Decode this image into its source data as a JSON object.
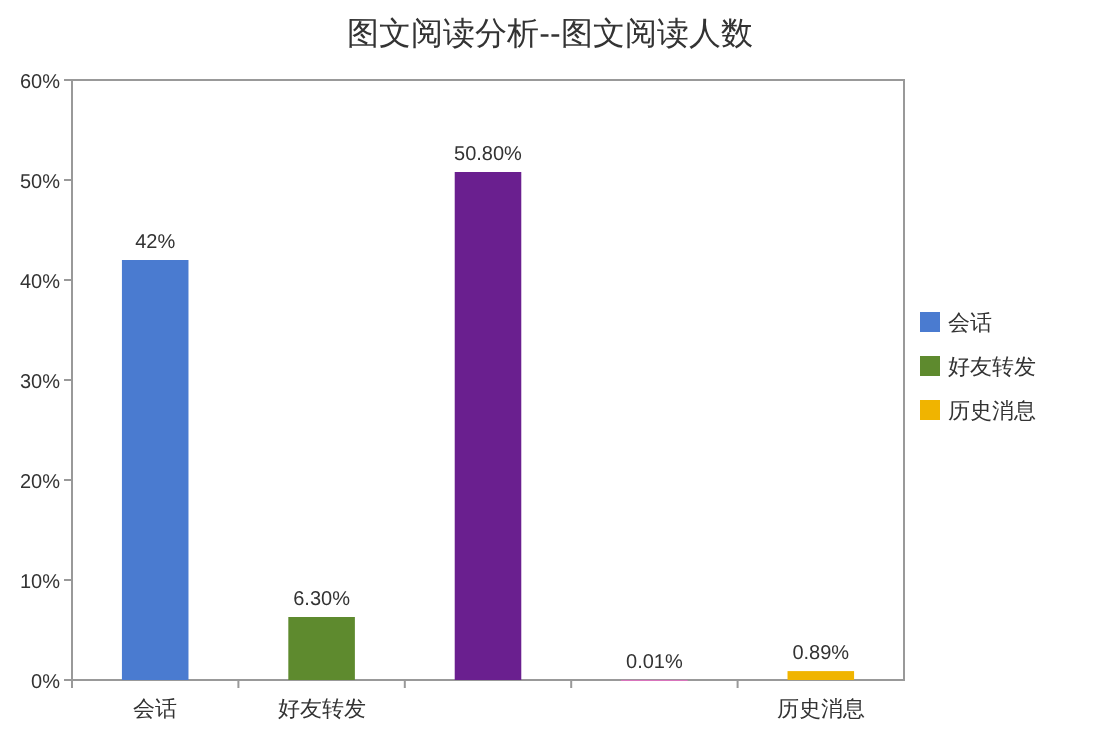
{
  "chart_data": {
    "type": "bar",
    "title": "图文阅读分析--图文阅读人数",
    "categories": [
      "会话",
      "好友转发",
      null,
      null,
      "历史消息"
    ],
    "series": [
      {
        "name": "会话",
        "color": "#4a7bd0",
        "values": [
          42,
          null,
          null,
          null,
          null
        ],
        "value_labels": [
          "42%",
          null,
          null,
          null,
          null
        ]
      },
      {
        "name": "好友转发",
        "color": "#5e8a2e",
        "values": [
          null,
          6.3,
          null,
          null,
          null
        ],
        "value_labels": [
          null,
          "6.30%",
          null,
          null,
          null
        ]
      },
      {
        "color": "#6a1f8f",
        "values": [
          null,
          null,
          50.8,
          null,
          null
        ],
        "value_labels": [
          null,
          null,
          "50.80%",
          null,
          null
        ]
      },
      {
        "color": "#e070c0",
        "values": [
          null,
          null,
          null,
          0.01,
          null
        ],
        "value_labels": [
          null,
          null,
          null,
          "0.01%",
          null
        ]
      },
      {
        "name": "历史消息",
        "color": "#f0b400",
        "values": [
          null,
          null,
          null,
          null,
          0.89
        ],
        "value_labels": [
          null,
          null,
          null,
          null,
          "0.89%"
        ]
      }
    ],
    "ylim": [
      0,
      60
    ],
    "yticks": [
      {
        "value": 0,
        "label": "0%"
      },
      {
        "value": 10,
        "label": "10%"
      },
      {
        "value": 20,
        "label": "20%"
      },
      {
        "value": 30,
        "label": "30%"
      },
      {
        "value": 40,
        "label": "40%"
      },
      {
        "value": 50,
        "label": "50%"
      },
      {
        "value": 60,
        "label": "60%"
      }
    ],
    "legend": "right"
  }
}
